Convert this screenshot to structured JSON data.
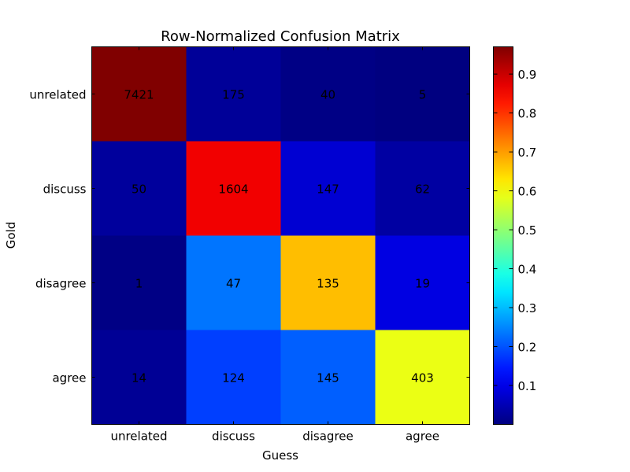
{
  "chart_data": {
    "type": "heatmap",
    "title": "Row-Normalized Confusion Matrix",
    "xlabel": "Guess",
    "ylabel": "Gold",
    "x_categories": [
      "unrelated",
      "discuss",
      "disagree",
      "agree"
    ],
    "y_categories": [
      "unrelated",
      "discuss",
      "disagree",
      "agree"
    ],
    "counts": [
      [
        7421,
        175,
        40,
        5
      ],
      [
        50,
        1604,
        147,
        62
      ],
      [
        1,
        47,
        135,
        19
      ],
      [
        14,
        124,
        145,
        403
      ]
    ],
    "colormap": "jet",
    "colorbar": {
      "range": [
        0.0,
        0.97
      ],
      "ticks": [
        0.1,
        0.2,
        0.3,
        0.4,
        0.5,
        0.6,
        0.7,
        0.8,
        0.9
      ],
      "tick_labels": [
        "0.1",
        "0.2",
        "0.3",
        "0.4",
        "0.5",
        "0.6",
        "0.7",
        "0.8",
        "0.9"
      ]
    },
    "grid": false
  }
}
